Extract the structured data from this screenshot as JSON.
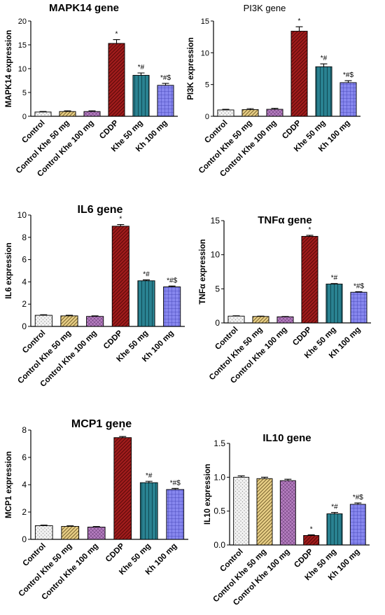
{
  "categories": [
    "Control",
    "Control Khe 50 mg",
    "Control Khe 100 mg",
    "CDDP",
    "Khe 50 mg",
    "Kh 100 mg"
  ],
  "bar_styles": [
    {
      "fill": "#f2f2f2",
      "pattern": "dots",
      "pattern_color": "#9a9a9a"
    },
    {
      "fill": "#e8cf86",
      "pattern": "diag",
      "pattern_color": "#7a6530"
    },
    {
      "fill": "#b27bbd",
      "pattern": "hatch",
      "pattern_color": "#5a2f66"
    },
    {
      "fill": "#a01c1c",
      "pattern": "diag",
      "pattern_color": "#5a0808"
    },
    {
      "fill": "#2a8291",
      "pattern": "vert",
      "pattern_color": "#0f4a55"
    },
    {
      "fill": "#8787ee",
      "pattern": "grid",
      "pattern_color": "#3c3cb0"
    }
  ],
  "chart_data": [
    {
      "type": "bar",
      "title": "MAPK14  gene",
      "ylabel": "MAPK14 expression",
      "ylim": [
        0,
        20
      ],
      "yticks": [
        "0",
        "5",
        "10",
        "15",
        "20"
      ],
      "values": [
        0.9,
        1.0,
        1.0,
        15.3,
        8.6,
        6.5
      ],
      "errors": [
        0.1,
        0.15,
        0.15,
        0.8,
        0.5,
        0.4
      ],
      "annotations": [
        "",
        "",
        "",
        "*",
        "*#",
        "*#$"
      ]
    },
    {
      "type": "bar",
      "title": "PI3K gene",
      "ylabel": "PI3K expression",
      "ylim": [
        0,
        15
      ],
      "yticks": [
        "0",
        "5",
        "10",
        "15"
      ],
      "values": [
        1.0,
        1.05,
        1.1,
        13.4,
        7.8,
        5.3
      ],
      "errors": [
        0.1,
        0.15,
        0.15,
        0.7,
        0.45,
        0.3
      ],
      "annotations": [
        "",
        "",
        "",
        "*",
        "*#",
        "*#$"
      ]
    },
    {
      "type": "bar",
      "title": "IL6 gene",
      "ylabel": "IL6 expression",
      "ylim": [
        0,
        10
      ],
      "yticks": [
        "0",
        "2",
        "4",
        "6",
        "8",
        "10"
      ],
      "values": [
        1.0,
        0.95,
        0.9,
        9.0,
        4.1,
        3.55
      ],
      "errors": [
        0.05,
        0.05,
        0.05,
        0.15,
        0.08,
        0.08
      ],
      "annotations": [
        "",
        "",
        "",
        "*",
        "*#",
        "*#$"
      ]
    },
    {
      "type": "bar",
      "title": "TNFα gene",
      "ylabel": "TNFα expression",
      "ylim": [
        0,
        15
      ],
      "yticks": [
        "0",
        "5",
        "10",
        "15"
      ],
      "values": [
        1.0,
        0.95,
        0.9,
        12.7,
        5.7,
        4.5
      ],
      "errors": [
        0.05,
        0.05,
        0.05,
        0.15,
        0.08,
        0.08
      ],
      "annotations": [
        "",
        "",
        "",
        "*",
        "*#",
        "*#$"
      ]
    },
    {
      "type": "bar",
      "title": "MCP1 gene",
      "ylabel": "MCP1 expression",
      "ylim": [
        0,
        8
      ],
      "yticks": [
        "0",
        "2",
        "4",
        "6",
        "8"
      ],
      "values": [
        1.0,
        0.95,
        0.9,
        7.45,
        4.15,
        3.65
      ],
      "errors": [
        0.04,
        0.04,
        0.04,
        0.08,
        0.1,
        0.08
      ],
      "annotations": [
        "",
        "",
        "",
        "*",
        "*#",
        "*#$"
      ]
    },
    {
      "type": "bar",
      "title": "IL10 gene",
      "ylabel": "IL10 expression",
      "ylim": [
        0,
        1.5
      ],
      "yticks": [
        "0.0",
        "0.5",
        "1.0",
        "1.5"
      ],
      "values": [
        1.0,
        0.98,
        0.95,
        0.14,
        0.46,
        0.6
      ],
      "errors": [
        0.02,
        0.02,
        0.02,
        0.01,
        0.02,
        0.02
      ],
      "annotations": [
        "",
        "",
        "",
        "*",
        "*#",
        "*#$"
      ]
    }
  ]
}
